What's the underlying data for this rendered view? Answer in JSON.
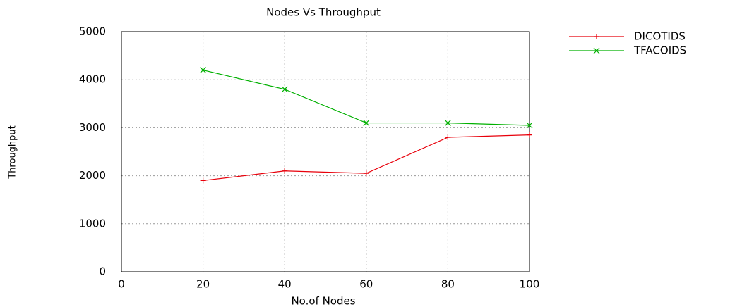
{
  "chart_data": {
    "type": "line",
    "title": "Nodes Vs Throughput",
    "x_label": "No.of Nodes",
    "y_label": "Throughput",
    "x": [
      20,
      40,
      60,
      80,
      100
    ],
    "series": [
      {
        "name": "DICOTIDS",
        "color": "#e8000b",
        "marker": "plus",
        "values": [
          1900,
          2100,
          2050,
          2800,
          2850
        ]
      },
      {
        "name": "TFACOIDS",
        "color": "#00b000",
        "marker": "cross",
        "values": [
          4200,
          3800,
          3100,
          3100,
          3050
        ]
      }
    ],
    "xlim": [
      0,
      100
    ],
    "xticks": [
      0,
      20,
      40,
      60,
      80,
      100
    ],
    "ylim": [
      0,
      5000
    ],
    "yticks": [
      0,
      1000,
      2000,
      3000,
      4000,
      5000
    ],
    "grid": true,
    "legend": "outside-top-right"
  }
}
